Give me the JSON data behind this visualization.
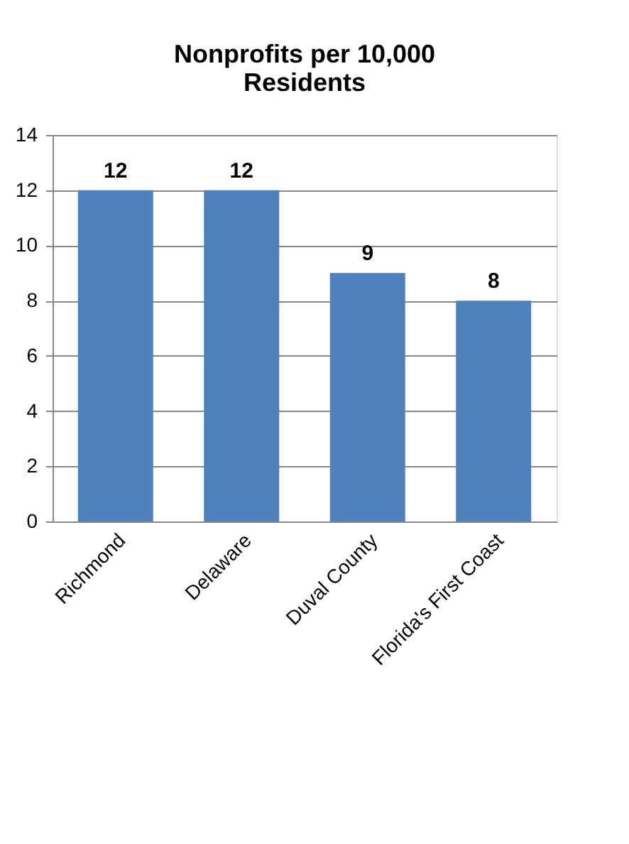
{
  "chart_data": {
    "type": "bar",
    "title": "Nonprofits per 10,000 Residents",
    "categories": [
      "Richmond",
      "Delaware",
      "Duval County",
      "Florida's First Coast"
    ],
    "values": [
      12,
      12,
      9,
      8
    ],
    "color": "#4f81bd",
    "ylim": [
      0,
      14
    ],
    "yticks": [
      0,
      2,
      4,
      6,
      8,
      10,
      12,
      14
    ],
    "grid": "y",
    "data_labels": true
  }
}
